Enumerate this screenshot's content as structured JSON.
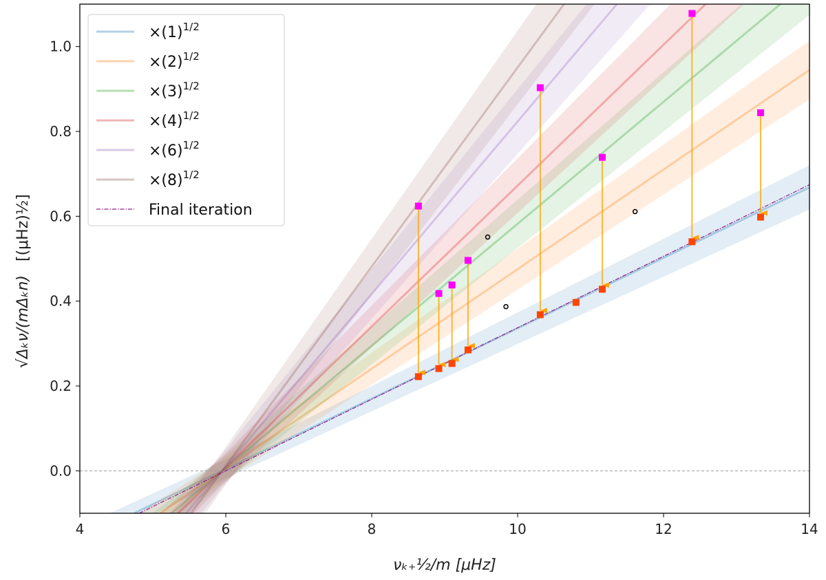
{
  "chart_data": {
    "type": "line",
    "title": "",
    "xlabel": "νₖ₊½/m  [μHz]",
    "ylabel": "√Δₖν/(mΔₖn)",
    "ylabel_unit": "[(μHz)½]",
    "xlim": [
      4,
      14
    ],
    "ylim": [
      -0.1,
      1.1
    ],
    "xticks": [
      "4",
      "6",
      "8",
      "10",
      "12",
      "14"
    ],
    "yticks": [
      "0.0",
      "0.2",
      "0.4",
      "0.6",
      "0.8",
      "1.0"
    ],
    "grid": false,
    "legend_position": "top-left",
    "reference_line": {
      "y": 0.0,
      "style": "dashed",
      "color": "#999999"
    },
    "model": {
      "x0": 5.95,
      "base_slope": 0.083,
      "form": "y = base_slope * sqrt(n) * (x - x0)"
    },
    "series": [
      {
        "name": "×(1)",
        "sup": "1/2",
        "n": 1,
        "color": "#1f77b4"
      },
      {
        "name": "×(2)",
        "sup": "1/2",
        "n": 2,
        "color": "#ff7f0e"
      },
      {
        "name": "×(3)",
        "sup": "1/2",
        "n": 3,
        "color": "#2ca02c"
      },
      {
        "name": "×(4)",
        "sup": "1/2",
        "n": 4,
        "color": "#d62728"
      },
      {
        "name": "×(6)",
        "sup": "1/2",
        "n": 6,
        "color": "#9467bd"
      },
      {
        "name": "×(8)",
        "sup": "1/2",
        "n": 8,
        "color": "#8c564b"
      }
    ],
    "final_iteration": {
      "name": "Final iteration",
      "x0": 6.0,
      "slope": 0.0843,
      "color": "#8e1f8e"
    },
    "initial_points": {
      "color": "#ff00ff",
      "x": [
        8.64,
        8.92,
        9.1,
        9.32,
        10.31,
        11.16,
        12.39,
        13.33
      ],
      "y": [
        0.624,
        0.418,
        0.438,
        0.496,
        0.903,
        0.739,
        1.078,
        0.844
      ]
    },
    "corrected_points": {
      "color": "#ff4500",
      "x": [
        8.64,
        8.92,
        9.1,
        9.32,
        10.31,
        10.8,
        11.16,
        12.39,
        13.33
      ],
      "y": [
        0.222,
        0.241,
        0.253,
        0.285,
        0.368,
        0.397,
        0.428,
        0.54,
        0.598
      ]
    },
    "open_points": {
      "color": "#000000",
      "x": [
        9.59,
        9.84,
        11.61
      ],
      "y": [
        0.551,
        0.387,
        0.611
      ]
    },
    "arrow_color": "#ffa500"
  }
}
